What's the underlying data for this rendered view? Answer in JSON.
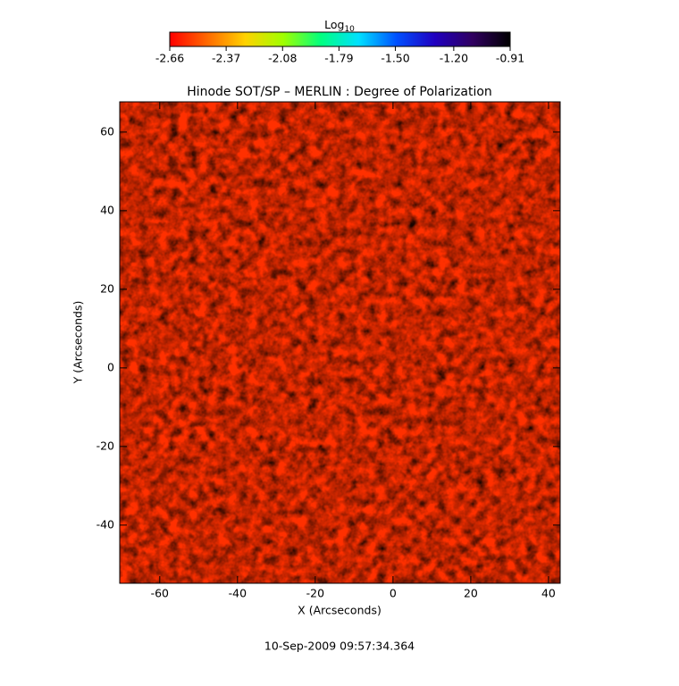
{
  "chart_data": {
    "type": "image",
    "title": "Hinode SOT/SP – MERLIN : Degree of Polarization",
    "xlabel": "X (Arcseconds)",
    "ylabel": "Y (Arcseconds)",
    "xlim": [
      -70.3,
      43
    ],
    "ylim": [
      -54.8,
      67.7
    ],
    "xticks": [
      -60,
      -40,
      -20,
      0,
      20,
      40
    ],
    "yticks": [
      -40,
      -20,
      0,
      20,
      40,
      60
    ],
    "colorbar": {
      "label": "Log",
      "label_sub": "10",
      "clim": [
        -2.66,
        -0.91
      ],
      "ticks": [
        -2.66,
        -2.37,
        -2.08,
        -1.79,
        {
          "value": -1.5,
          "label": "-1.50"
        },
        {
          "value": -1.2,
          "label": "-1.20"
        },
        -0.91
      ],
      "colormap": [
        "#ff0000",
        "#ff6a00",
        "#ffd200",
        "#a0ff00",
        "#00ff80",
        "#00e0ff",
        "#0050ff",
        "#2000c0",
        "#300060",
        "#000000"
      ]
    },
    "footer": "10-Sep-2009 09:57:34.364"
  }
}
